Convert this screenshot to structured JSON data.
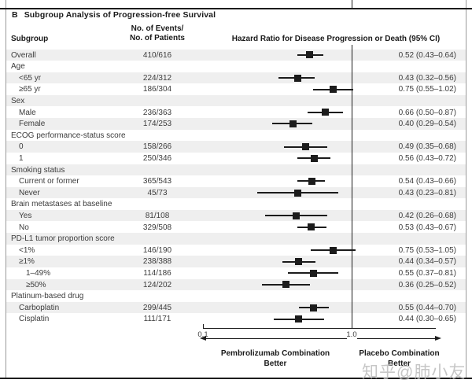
{
  "figure": {
    "panel_letter": "B",
    "title": "Subgroup Analysis of Progression-free Survival",
    "col_subgroup": "Subgroup",
    "col_events_line1": "No. of Events/",
    "col_events_line2": "No. of Patients",
    "col_hr": "Hazard Ratio for Disease Progression or Death (95% CI)"
  },
  "axis": {
    "tick_left": "0.1",
    "tick_ref": "1.0",
    "left_arrow_label_line1": "Pembrolizumab Combination",
    "left_arrow_label_line2": "Better",
    "right_arrow_label_line1": "Placebo Combination",
    "right_arrow_label_line2": "Better"
  },
  "watermark": "知乎@肺小友",
  "colors": {
    "stripe": "#efefef",
    "ink": "#1c1c1c",
    "text": "#3c3c3c",
    "border": "#9a9a9a",
    "watermark": "#bdbdbd"
  },
  "chart_data": {
    "type": "scatter",
    "subtype": "forest-plot",
    "x_scale": "log10",
    "x_ticks": [
      0.1,
      1.0
    ],
    "reference_line": 1.0,
    "xlabel_left": "Pembrolizumab Combination Better",
    "xlabel_right": "Placebo Combination Better",
    "rows": [
      {
        "label": "Overall",
        "indent": 0,
        "events": "410/616",
        "hr": 0.52,
        "lo": 0.43,
        "hi": 0.64,
        "hr_text": "0.52 (0.43–0.64)",
        "shaded": true
      },
      {
        "label": "Age",
        "indent": 0,
        "header": true,
        "shaded": false
      },
      {
        "label": "<65 yr",
        "indent": 1,
        "events": "224/312",
        "hr": 0.43,
        "lo": 0.32,
        "hi": 0.56,
        "hr_text": "0.43 (0.32–0.56)",
        "shaded": true
      },
      {
        "label": "≥65 yr",
        "indent": 1,
        "events": "186/304",
        "hr": 0.75,
        "lo": 0.55,
        "hi": 1.02,
        "hr_text": "0.75 (0.55–1.02)",
        "shaded": false
      },
      {
        "label": "Sex",
        "indent": 0,
        "header": true,
        "shaded": true
      },
      {
        "label": "Male",
        "indent": 1,
        "events": "236/363",
        "hr": 0.66,
        "lo": 0.5,
        "hi": 0.87,
        "hr_text": "0.66 (0.50–0.87)",
        "shaded": false
      },
      {
        "label": "Female",
        "indent": 1,
        "events": "174/253",
        "hr": 0.4,
        "lo": 0.29,
        "hi": 0.54,
        "hr_text": "0.40 (0.29–0.54)",
        "shaded": true
      },
      {
        "label": "ECOG performance-status score",
        "indent": 0,
        "header": true,
        "shaded": false
      },
      {
        "label": "0",
        "indent": 1,
        "events": "158/266",
        "hr": 0.49,
        "lo": 0.35,
        "hi": 0.68,
        "hr_text": "0.49 (0.35–0.68)",
        "shaded": true
      },
      {
        "label": "1",
        "indent": 1,
        "events": "250/346",
        "hr": 0.56,
        "lo": 0.43,
        "hi": 0.72,
        "hr_text": "0.56 (0.43–0.72)",
        "shaded": false
      },
      {
        "label": "Smoking status",
        "indent": 0,
        "header": true,
        "shaded": true
      },
      {
        "label": "Current or former",
        "indent": 1,
        "events": "365/543",
        "hr": 0.54,
        "lo": 0.43,
        "hi": 0.66,
        "hr_text": "0.54 (0.43–0.66)",
        "shaded": false
      },
      {
        "label": "Never",
        "indent": 1,
        "events": "45/73",
        "hr": 0.43,
        "lo": 0.23,
        "hi": 0.81,
        "hr_text": "0.43 (0.23–0.81)",
        "shaded": true
      },
      {
        "label": "Brain metastases at baseline",
        "indent": 0,
        "header": true,
        "shaded": false
      },
      {
        "label": "Yes",
        "indent": 1,
        "events": "81/108",
        "hr": 0.42,
        "lo": 0.26,
        "hi": 0.68,
        "hr_text": "0.42 (0.26–0.68)",
        "shaded": true
      },
      {
        "label": "No",
        "indent": 1,
        "events": "329/508",
        "hr": 0.53,
        "lo": 0.43,
        "hi": 0.67,
        "hr_text": "0.53 (0.43–0.67)",
        "shaded": false
      },
      {
        "label": "PD-L1 tumor proportion score",
        "indent": 0,
        "header": true,
        "shaded": true
      },
      {
        "label": "<1%",
        "indent": 1,
        "events": "146/190",
        "hr": 0.75,
        "lo": 0.53,
        "hi": 1.05,
        "hr_text": "0.75 (0.53–1.05)",
        "shaded": false
      },
      {
        "label": "≥1%",
        "indent": 1,
        "events": "238/388",
        "hr": 0.44,
        "lo": 0.34,
        "hi": 0.57,
        "hr_text": "0.44 (0.34–0.57)",
        "shaded": true
      },
      {
        "label": "1–49%",
        "indent": 2,
        "events": "114/186",
        "hr": 0.55,
        "lo": 0.37,
        "hi": 0.81,
        "hr_text": "0.55 (0.37–0.81)",
        "shaded": false
      },
      {
        "label": "≥50%",
        "indent": 2,
        "events": "124/202",
        "hr": 0.36,
        "lo": 0.25,
        "hi": 0.52,
        "hr_text": "0.36 (0.25–0.52)",
        "shaded": true
      },
      {
        "label": "Platinum-based drug",
        "indent": 0,
        "header": true,
        "shaded": false
      },
      {
        "label": "Carboplatin",
        "indent": 1,
        "events": "299/445",
        "hr": 0.55,
        "lo": 0.44,
        "hi": 0.7,
        "hr_text": "0.55 (0.44–0.70)",
        "shaded": true
      },
      {
        "label": "Cisplatin",
        "indent": 1,
        "events": "111/171",
        "hr": 0.44,
        "lo": 0.3,
        "hi": 0.65,
        "hr_text": "0.44 (0.30–0.65)",
        "shaded": false
      }
    ]
  }
}
